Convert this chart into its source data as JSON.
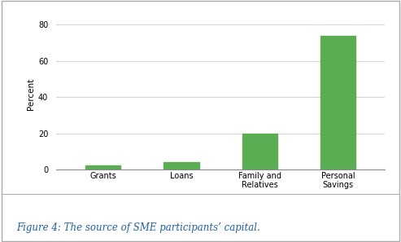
{
  "categories": [
    "Grants",
    "Loans",
    "Family and\nRelatives",
    "Personal\nSavings"
  ],
  "values": [
    2,
    4,
    20,
    74
  ],
  "bar_color": "#5aad52",
  "bar_width": 0.45,
  "ylabel": "Percent",
  "ylim": [
    0,
    83
  ],
  "yticks": [
    0,
    20,
    40,
    60,
    80
  ],
  "grid_color": "#cccccc",
  "background_color": "#ffffff",
  "caption": "Figure 4: The source of SME participants’ capital.",
  "caption_color": "#1f5fa6",
  "caption_fontsize": 8.5,
  "ylabel_fontsize": 7.5,
  "tick_fontsize": 7,
  "border_color": "#aaaaaa"
}
